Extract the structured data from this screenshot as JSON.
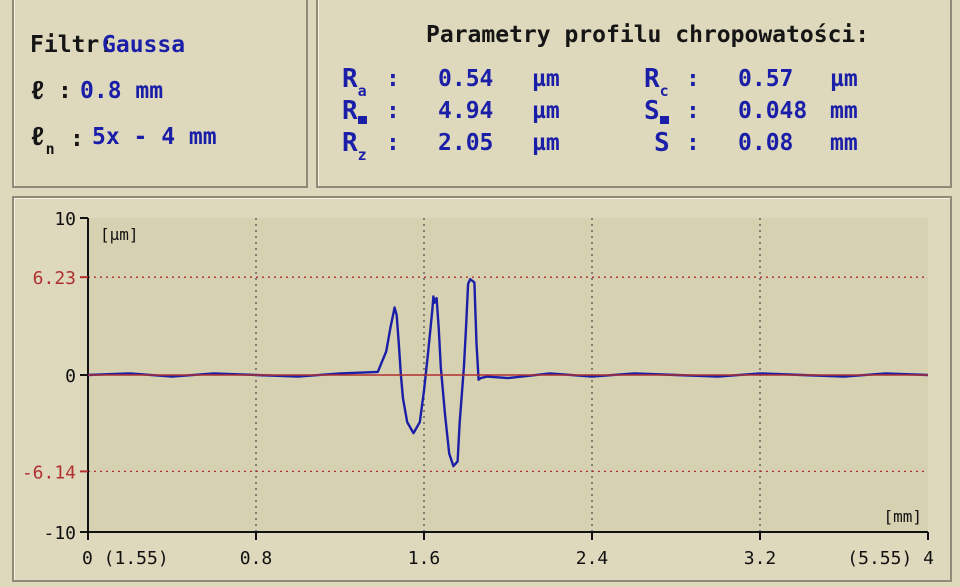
{
  "filter": {
    "filter_label": "Filtr:",
    "filter_value": "Gaussa",
    "cutoff_symbol": "ℓ",
    "cutoff_value": "0.8 mm",
    "eval_symbol": "ℓ",
    "eval_sub": "n",
    "eval_value": "5x - 4 mm"
  },
  "params": {
    "title": "Parametry profilu chropowatości:",
    "rows": [
      {
        "sym": "R",
        "sub": "a",
        "value": "0.54",
        "unit": "µm"
      },
      {
        "sym": "R",
        "sub": "",
        "value": "4.94",
        "unit": "µm"
      },
      {
        "sym": "R",
        "sub": "z",
        "value": "2.05",
        "unit": "µm"
      },
      {
        "sym": "R",
        "sub": "c",
        "value": "0.57",
        "unit": "µm"
      },
      {
        "sym": "S",
        "sub": "",
        "value": "0.048",
        "unit": "mm"
      },
      {
        "sym": "S",
        "sub": "",
        "value": "0.08",
        "unit": "mm"
      }
    ]
  },
  "chart_data": {
    "type": "line",
    "ylabel": "[µm]",
    "xlabel": "[mm]",
    "xlim": [
      0,
      4
    ],
    "ylim": [
      -10,
      10
    ],
    "grid": true,
    "y_ticks": [
      "10",
      "6.23",
      "0",
      "-6.14",
      "-10"
    ],
    "y_tick_values": [
      10,
      6.23,
      0,
      -6.14,
      -10
    ],
    "x_ticks": [
      "0 (1.55)",
      "0.8",
      "1.6",
      "2.4",
      "3.2",
      "(5.55) 4"
    ],
    "x_tick_values": [
      0,
      0.8,
      1.6,
      2.4,
      3.2,
      4
    ],
    "reference_lines": [
      6.23,
      0,
      -6.14
    ],
    "series": [
      {
        "color": "#1b1fa8",
        "x": [
          0,
          0.2,
          0.4,
          0.6,
          0.8,
          1.0,
          1.2,
          1.38,
          1.42,
          1.44,
          1.46,
          1.47,
          1.48,
          1.49,
          1.5,
          1.52,
          1.55,
          1.58,
          1.6,
          1.62,
          1.64,
          1.645,
          1.65,
          1.66,
          1.67,
          1.68,
          1.7,
          1.72,
          1.74,
          1.76,
          1.77,
          1.79,
          1.8,
          1.81,
          1.82,
          1.83,
          1.84,
          1.85,
          1.86,
          1.87,
          1.9,
          2.0,
          2.2,
          2.4,
          2.6,
          2.8,
          3.0,
          3.2,
          3.4,
          3.6,
          3.8,
          4.0
        ],
        "y": [
          0,
          0.1,
          -0.1,
          0.1,
          0,
          -0.1,
          0.1,
          0.2,
          1.5,
          3.0,
          4.3,
          3.8,
          2.0,
          0,
          -1.5,
          -3.0,
          -3.7,
          -3.0,
          -1.0,
          1.5,
          4.2,
          5.0,
          4.6,
          4.9,
          3.0,
          0.5,
          -2.5,
          -5.0,
          -5.8,
          -5.5,
          -3.0,
          0.5,
          3.0,
          5.8,
          6.1,
          6.0,
          5.9,
          2.0,
          -0.3,
          -0.2,
          -0.1,
          -0.2,
          0.1,
          -0.1,
          0.1,
          0,
          -0.1,
          0.1,
          0,
          -0.1,
          0.1,
          0
        ]
      },
      {
        "color": "#b03030",
        "x": [
          0,
          4
        ],
        "y": [
          0,
          0
        ]
      }
    ]
  },
  "colors": {
    "background": "#ded9bd",
    "plot_background": "#d6d1b1",
    "trace": "#1b1fa8",
    "reference": "#b03030",
    "axis": "#111111"
  }
}
